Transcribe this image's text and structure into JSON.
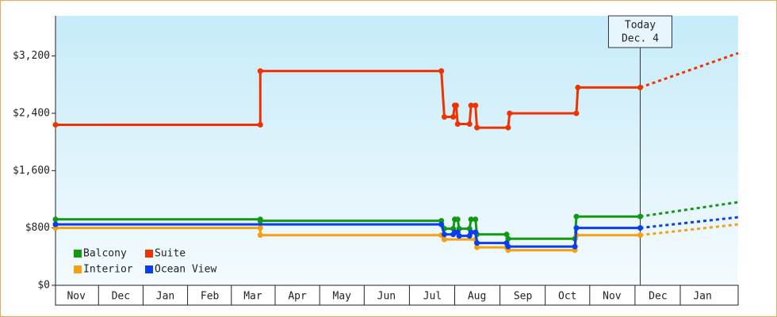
{
  "chart_data": {
    "type": "step-line",
    "xlim": [
      0,
      460
    ],
    "ylim": [
      0,
      3760
    ],
    "xticks": [
      {
        "value": 14,
        "label": "Nov"
      },
      {
        "value": 44,
        "label": "Dec"
      },
      {
        "value": 74,
        "label": "Jan"
      },
      {
        "value": 104,
        "label": "Feb"
      },
      {
        "value": 133,
        "label": "Mar"
      },
      {
        "value": 163,
        "label": "Apr"
      },
      {
        "value": 193,
        "label": "May"
      },
      {
        "value": 223,
        "label": "Jun"
      },
      {
        "value": 254,
        "label": "Jul"
      },
      {
        "value": 284,
        "label": "Aug"
      },
      {
        "value": 315,
        "label": "Sep"
      },
      {
        "value": 345,
        "label": "Oct"
      },
      {
        "value": 375,
        "label": "Nov"
      },
      {
        "value": 406,
        "label": "Dec"
      },
      {
        "value": 436,
        "label": "Jan"
      }
    ],
    "yticks": [
      {
        "value": 0,
        "label": "$0"
      },
      {
        "value": 800,
        "label": "$800"
      },
      {
        "value": 1600,
        "label": "$1,600"
      },
      {
        "value": 2400,
        "label": "$2,400"
      },
      {
        "value": 3200,
        "label": "$3,200"
      }
    ],
    "annotation": {
      "x": 394,
      "text": [
        "Today",
        "Dec. 4"
      ]
    },
    "series": [
      {
        "name": "Balcony",
        "color": "#119911",
        "x": [
          0,
          138,
          138,
          260,
          262,
          268,
          269,
          271,
          272,
          279,
          280,
          283,
          284,
          304,
          305,
          350,
          351,
          394,
          460
        ],
        "values": [
          920,
          920,
          900,
          900,
          790,
          790,
          920,
          920,
          790,
          790,
          920,
          920,
          710,
          710,
          650,
          650,
          960,
          960,
          1160
        ]
      },
      {
        "name": "Suite",
        "color": "#ee3300",
        "x": [
          0,
          138,
          138,
          260,
          262,
          268,
          269,
          270,
          271,
          279,
          280,
          283,
          284,
          305,
          306,
          351,
          352,
          394,
          460
        ],
        "values": [
          2240,
          2240,
          2990,
          2990,
          2350,
          2350,
          2510,
          2510,
          2250,
          2250,
          2510,
          2510,
          2200,
          2200,
          2400,
          2400,
          2760,
          2760,
          3240
        ]
      },
      {
        "name": "Interior",
        "color": "#f5a00f",
        "x": [
          0,
          138,
          138,
          260,
          262,
          283,
          284,
          304,
          305,
          350,
          351,
          394,
          460
        ],
        "values": [
          800,
          800,
          700,
          700,
          640,
          640,
          530,
          530,
          490,
          490,
          700,
          700,
          850
        ]
      },
      {
        "name": "Ocean View",
        "color": "#0a3cf0",
        "x": [
          0,
          260,
          262,
          268,
          269,
          271,
          272,
          279,
          280,
          283,
          284,
          304,
          305,
          350,
          351,
          394,
          460
        ],
        "values": [
          850,
          850,
          710,
          710,
          740,
          740,
          690,
          690,
          740,
          740,
          590,
          590,
          540,
          540,
          800,
          800,
          950
        ]
      }
    ]
  }
}
